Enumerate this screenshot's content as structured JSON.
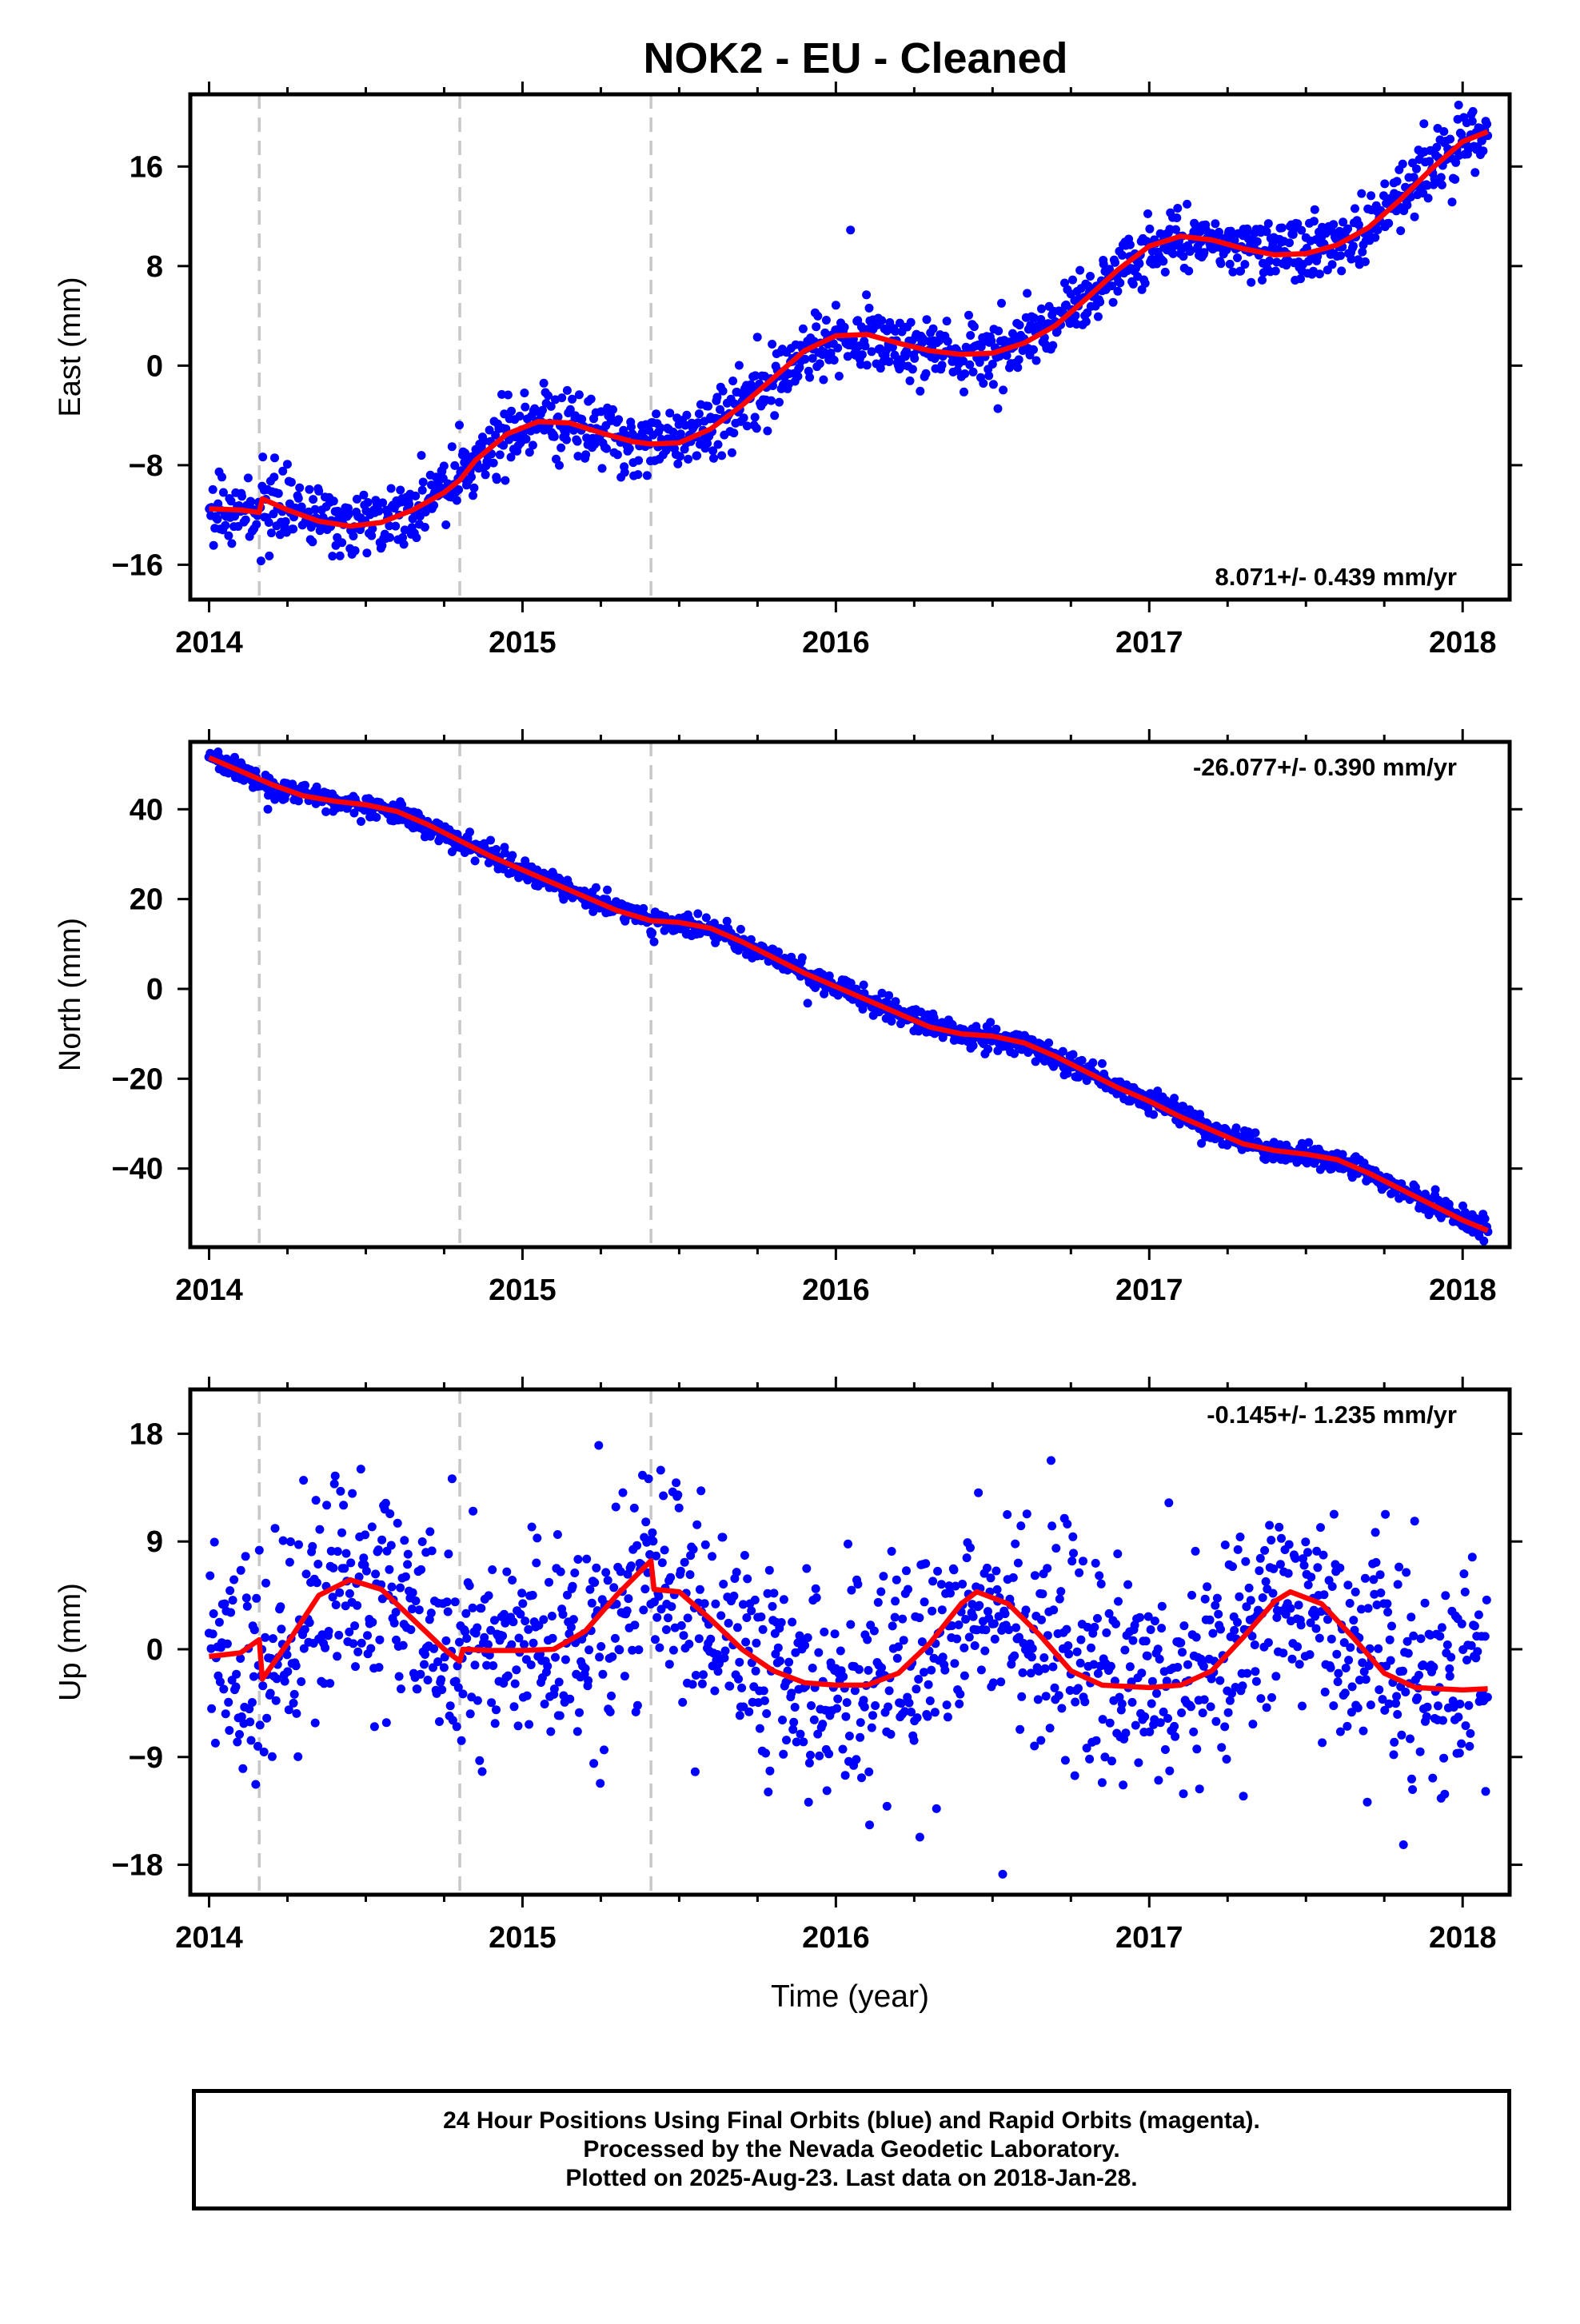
{
  "figure_title": "NOK2  - EU - Cleaned",
  "x_axis_label": "Time (year)",
  "footer_lines": [
    "24 Hour Positions Using Final Orbits (blue) and Rapid Orbits (magenta).",
    "Processed by the Nevada Geodetic Laboratory.",
    "Plotted on 2025-Aug-23. Last data on 2018-Jan-28."
  ],
  "colors": {
    "data_points": "#0000ff",
    "model_fit": "#ff0000",
    "step_lines": "#c8c8c8",
    "frame": "#000000"
  },
  "chart_data": [
    {
      "type": "scatter",
      "panel": "east",
      "title": "NOK2  - EU - Cleaned",
      "xlabel": "",
      "ylabel": "East (mm)",
      "xlim": [
        2013.94,
        2018.15
      ],
      "ylim": [
        -18.8,
        21.8
      ],
      "xticks": [
        "2014",
        "2015",
        "2016",
        "2017",
        "2018"
      ],
      "yticks": [
        "16",
        "8",
        "0",
        "−8",
        "−16"
      ],
      "ytick_values": [
        16,
        8,
        0,
        -8,
        -16
      ],
      "rate_annotation": "8.071+/- 0.439 mm/yr",
      "rate_position": "bottom-right",
      "grid": false,
      "step_epochs": [
        2014.16,
        2014.8,
        2015.41
      ],
      "fit_points": [
        [
          2014.0,
          -11.5
        ],
        [
          2014.1,
          -11.6
        ],
        [
          2014.16,
          -11.8
        ],
        [
          2014.17,
          -10.7
        ],
        [
          2014.25,
          -11.6
        ],
        [
          2014.35,
          -12.5
        ],
        [
          2014.45,
          -12.9
        ],
        [
          2014.55,
          -12.6
        ],
        [
          2014.65,
          -11.6
        ],
        [
          2014.75,
          -10.2
        ],
        [
          2014.8,
          -9.2
        ],
        [
          2014.85,
          -7.6
        ],
        [
          2014.95,
          -5.5
        ],
        [
          2015.05,
          -4.5
        ],
        [
          2015.15,
          -4.6
        ],
        [
          2015.25,
          -5.4
        ],
        [
          2015.35,
          -6.1
        ],
        [
          2015.41,
          -6.3
        ],
        [
          2015.5,
          -6.2
        ],
        [
          2015.6,
          -5.1
        ],
        [
          2015.7,
          -3.2
        ],
        [
          2015.8,
          -1.0
        ],
        [
          2015.9,
          1.2
        ],
        [
          2016.0,
          2.4
        ],
        [
          2016.1,
          2.5
        ],
        [
          2016.2,
          1.8
        ],
        [
          2016.3,
          1.2
        ],
        [
          2016.4,
          0.9
        ],
        [
          2016.5,
          1.0
        ],
        [
          2016.6,
          1.8
        ],
        [
          2016.7,
          3.2
        ],
        [
          2016.8,
          5.4
        ],
        [
          2016.9,
          7.7
        ],
        [
          2017.0,
          9.6
        ],
        [
          2017.1,
          10.4
        ],
        [
          2017.2,
          10.1
        ],
        [
          2017.3,
          9.4
        ],
        [
          2017.4,
          8.9
        ],
        [
          2017.5,
          9.0
        ],
        [
          2017.6,
          9.7
        ],
        [
          2017.7,
          11.1
        ],
        [
          2017.8,
          13.3
        ],
        [
          2017.9,
          15.8
        ],
        [
          2018.0,
          18.0
        ],
        [
          2018.08,
          18.8
        ]
      ],
      "scatter_trend": [
        [
          2014.0,
          -11.5
        ],
        [
          2014.16,
          -11.8
        ],
        [
          2014.25,
          -11.6
        ],
        [
          2014.45,
          -12.9
        ],
        [
          2014.65,
          -11.6
        ],
        [
          2014.8,
          -9.2
        ],
        [
          2014.95,
          -5.5
        ],
        [
          2015.05,
          -4.5
        ],
        [
          2015.25,
          -5.4
        ],
        [
          2015.41,
          -6.3
        ],
        [
          2015.6,
          -5.1
        ],
        [
          2015.8,
          -1.0
        ],
        [
          2016.0,
          2.4
        ],
        [
          2016.1,
          2.5
        ],
        [
          2016.3,
          1.2
        ],
        [
          2016.5,
          1.0
        ],
        [
          2016.7,
          3.2
        ],
        [
          2016.9,
          7.7
        ],
        [
          2017.1,
          10.4
        ],
        [
          2017.3,
          9.4
        ],
        [
          2017.5,
          9.0
        ],
        [
          2017.7,
          11.1
        ],
        [
          2017.9,
          15.8
        ],
        [
          2018.08,
          18.8
        ]
      ],
      "scatter_spread_mm": 1.3,
      "observation_count": 1400,
      "time_range": [
        2014.0,
        2018.08
      ]
    },
    {
      "type": "scatter",
      "panel": "north",
      "title": "",
      "xlabel": "",
      "ylabel": "North (mm)",
      "xlim": [
        2013.94,
        2018.15
      ],
      "ylim": [
        -57.5,
        55.0
      ],
      "xticks": [
        "2014",
        "2015",
        "2016",
        "2017",
        "2018"
      ],
      "yticks": [
        "40",
        "20",
        "0",
        "−20",
        "−40"
      ],
      "ytick_values": [
        40,
        20,
        0,
        -20,
        -40
      ],
      "rate_annotation": "-26.077+/- 0.390 mm/yr",
      "rate_position": "top-right",
      "grid": false,
      "step_epochs": [
        2014.16,
        2014.8,
        2015.41
      ],
      "fit_points": [
        [
          2014.0,
          51.5
        ],
        [
          2014.1,
          48.5
        ],
        [
          2014.2,
          45.5
        ],
        [
          2014.3,
          43.0
        ],
        [
          2014.4,
          41.8
        ],
        [
          2014.5,
          41.0
        ],
        [
          2014.6,
          39.5
        ],
        [
          2014.7,
          36.5
        ],
        [
          2014.8,
          33.0
        ],
        [
          2014.9,
          29.5
        ],
        [
          2015.0,
          26.5
        ],
        [
          2015.1,
          23.5
        ],
        [
          2015.2,
          20.5
        ],
        [
          2015.3,
          17.5
        ],
        [
          2015.41,
          15.2
        ],
        [
          2015.5,
          14.8
        ],
        [
          2015.6,
          13.5
        ],
        [
          2015.7,
          10.5
        ],
        [
          2015.8,
          7.0
        ],
        [
          2015.9,
          3.5
        ],
        [
          2016.0,
          0.5
        ],
        [
          2016.1,
          -2.5
        ],
        [
          2016.2,
          -5.5
        ],
        [
          2016.3,
          -8.5
        ],
        [
          2016.4,
          -10.0
        ],
        [
          2016.5,
          -10.5
        ],
        [
          2016.6,
          -12.0
        ],
        [
          2016.7,
          -15.0
        ],
        [
          2016.8,
          -18.5
        ],
        [
          2016.9,
          -22.0
        ],
        [
          2017.0,
          -25.0
        ],
        [
          2017.1,
          -28.5
        ],
        [
          2017.2,
          -31.5
        ],
        [
          2017.3,
          -34.5
        ],
        [
          2017.4,
          -36.0
        ],
        [
          2017.5,
          -36.8
        ],
        [
          2017.6,
          -38.0
        ],
        [
          2017.7,
          -41.0
        ],
        [
          2017.8,
          -44.5
        ],
        [
          2017.9,
          -48.0
        ],
        [
          2018.0,
          -51.5
        ],
        [
          2018.08,
          -53.8
        ]
      ],
      "scatter_trend": [
        [
          2014.0,
          51.5
        ],
        [
          2014.2,
          45.5
        ],
        [
          2014.4,
          41.8
        ],
        [
          2014.6,
          39.5
        ],
        [
          2014.8,
          33.0
        ],
        [
          2015.0,
          26.5
        ],
        [
          2015.2,
          20.5
        ],
        [
          2015.41,
          15.2
        ],
        [
          2015.6,
          13.5
        ],
        [
          2015.8,
          7.0
        ],
        [
          2016.0,
          0.5
        ],
        [
          2016.2,
          -5.5
        ],
        [
          2016.4,
          -10.0
        ],
        [
          2016.6,
          -12.0
        ],
        [
          2016.8,
          -18.5
        ],
        [
          2017.0,
          -25.0
        ],
        [
          2017.2,
          -31.5
        ],
        [
          2017.4,
          -36.0
        ],
        [
          2017.6,
          -38.0
        ],
        [
          2017.8,
          -44.5
        ],
        [
          2018.0,
          -51.5
        ],
        [
          2018.08,
          -53.8
        ]
      ],
      "scatter_spread_mm": 1.2,
      "observation_count": 1400,
      "time_range": [
        2014.0,
        2018.08
      ]
    },
    {
      "type": "scatter",
      "panel": "up",
      "title": "",
      "xlabel": "Time (year)",
      "ylabel": "Up (mm)",
      "xlim": [
        2013.94,
        2018.15
      ],
      "ylim": [
        -20.5,
        21.7
      ],
      "xticks": [
        "2014",
        "2015",
        "2016",
        "2017",
        "2018"
      ],
      "yticks": [
        "18",
        "9",
        "0",
        "−9",
        "−18"
      ],
      "ytick_values": [
        18,
        9,
        0,
        -9,
        -18
      ],
      "rate_annotation": "-0.145+/- 1.235 mm/yr",
      "rate_position": "top-right",
      "grid": false,
      "step_epochs": [
        2014.16,
        2014.8,
        2015.41
      ],
      "fit_points": [
        [
          2014.0,
          -0.6
        ],
        [
          2014.1,
          -0.3
        ],
        [
          2014.16,
          0.8
        ],
        [
          2014.17,
          -2.5
        ],
        [
          2014.25,
          0.5
        ],
        [
          2014.35,
          4.5
        ],
        [
          2014.45,
          5.8
        ],
        [
          2014.55,
          5.0
        ],
        [
          2014.65,
          2.5
        ],
        [
          2014.75,
          0.0
        ],
        [
          2014.8,
          -1.0
        ],
        [
          2014.81,
          0.0
        ],
        [
          2014.9,
          -0.1
        ],
        [
          2015.0,
          -0.1
        ],
        [
          2015.1,
          0.0
        ],
        [
          2015.2,
          1.5
        ],
        [
          2015.3,
          4.5
        ],
        [
          2015.41,
          7.4
        ],
        [
          2015.42,
          5.0
        ],
        [
          2015.5,
          4.8
        ],
        [
          2015.6,
          2.5
        ],
        [
          2015.7,
          0.0
        ],
        [
          2015.8,
          -1.8
        ],
        [
          2015.9,
          -2.8
        ],
        [
          2016.0,
          -3.0
        ],
        [
          2016.1,
          -3.0
        ],
        [
          2016.2,
          -2.0
        ],
        [
          2016.3,
          0.5
        ],
        [
          2016.4,
          3.8
        ],
        [
          2016.45,
          4.8
        ],
        [
          2016.55,
          3.8
        ],
        [
          2016.65,
          1.2
        ],
        [
          2016.75,
          -1.8
        ],
        [
          2016.85,
          -3.0
        ],
        [
          2017.0,
          -3.2
        ],
        [
          2017.1,
          -3.0
        ],
        [
          2017.2,
          -1.8
        ],
        [
          2017.3,
          1.0
        ],
        [
          2017.4,
          4.0
        ],
        [
          2017.45,
          4.8
        ],
        [
          2017.55,
          3.8
        ],
        [
          2017.65,
          1.0
        ],
        [
          2017.75,
          -2.0
        ],
        [
          2017.85,
          -3.2
        ],
        [
          2018.0,
          -3.4
        ],
        [
          2018.08,
          -3.3
        ]
      ],
      "scatter_trend": [
        [
          2014.0,
          -0.6
        ],
        [
          2014.17,
          -2.5
        ],
        [
          2014.35,
          4.5
        ],
        [
          2014.45,
          5.8
        ],
        [
          2014.65,
          2.5
        ],
        [
          2014.8,
          -1.0
        ],
        [
          2015.0,
          -0.1
        ],
        [
          2015.2,
          1.5
        ],
        [
          2015.41,
          7.4
        ],
        [
          2015.5,
          4.8
        ],
        [
          2015.7,
          0.0
        ],
        [
          2015.9,
          -2.8
        ],
        [
          2016.1,
          -3.0
        ],
        [
          2016.3,
          0.5
        ],
        [
          2016.45,
          4.8
        ],
        [
          2016.65,
          1.2
        ],
        [
          2016.85,
          -3.0
        ],
        [
          2017.1,
          -3.0
        ],
        [
          2017.3,
          1.0
        ],
        [
          2017.45,
          4.8
        ],
        [
          2017.65,
          1.0
        ],
        [
          2017.85,
          -3.2
        ],
        [
          2018.08,
          -3.3
        ]
      ],
      "scatter_spread_mm": 4.5,
      "observation_count": 1400,
      "time_range": [
        2014.0,
        2018.08
      ]
    }
  ]
}
